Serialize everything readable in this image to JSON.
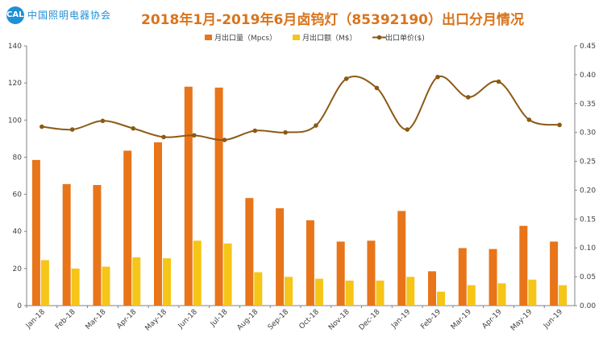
{
  "header": {
    "logo_text": "中国照明电器协会",
    "logo_mark": "CALI"
  },
  "chart_data": {
    "type": "bar",
    "title": "2018年1月-2019年6月卤钨灯（85392190）出口分月情况",
    "categories": [
      "Jan-18",
      "Feb-18",
      "Mar-18",
      "Apr-18",
      "May-18",
      "Jun-18",
      "Jul-18",
      "Aug-18",
      "Sep-18",
      "Oct-18",
      "Nov-18",
      "Dec-18",
      "Jan-19",
      "Feb-19",
      "Mar-19",
      "Apr-19",
      "May-19",
      "Jun-19"
    ],
    "series": [
      {
        "name": "月出口量（Mpcs）",
        "type": "bar",
        "axis": "left",
        "color": "#e8751a",
        "values": [
          78.5,
          65.5,
          65,
          83.5,
          88,
          118,
          117.5,
          58,
          52.5,
          46,
          34.5,
          35,
          51,
          18.5,
          31,
          30.5,
          43,
          34.5
        ]
      },
      {
        "name": "月出口额（M$）",
        "type": "bar",
        "axis": "left",
        "color": "#f5c518",
        "values": [
          24.5,
          20,
          21,
          26,
          25.5,
          35,
          33.5,
          18,
          15.5,
          14.5,
          13.5,
          13.5,
          15.5,
          7.5,
          11,
          12,
          14,
          11
        ]
      },
      {
        "name": "出口单价($)",
        "type": "line",
        "axis": "right",
        "color": "#8b5a14",
        "values": [
          0.31,
          0.305,
          0.32,
          0.307,
          0.292,
          0.295,
          0.287,
          0.303,
          0.3,
          0.312,
          0.393,
          0.377,
          0.305,
          0.396,
          0.361,
          0.388,
          0.322,
          0.313
        ]
      }
    ],
    "y_left": {
      "min": 0,
      "max": 140,
      "step": 20,
      "ticks": [
        "0",
        "20",
        "40",
        "60",
        "80",
        "100",
        "120",
        "140"
      ]
    },
    "y_right": {
      "min": 0,
      "max": 0.45,
      "step": 0.05,
      "ticks": [
        "0.00",
        "0.05",
        "0.10",
        "0.15",
        "0.20",
        "0.25",
        "0.30",
        "0.35",
        "0.40",
        "0.45"
      ]
    },
    "grid": "none",
    "legend": "top"
  }
}
